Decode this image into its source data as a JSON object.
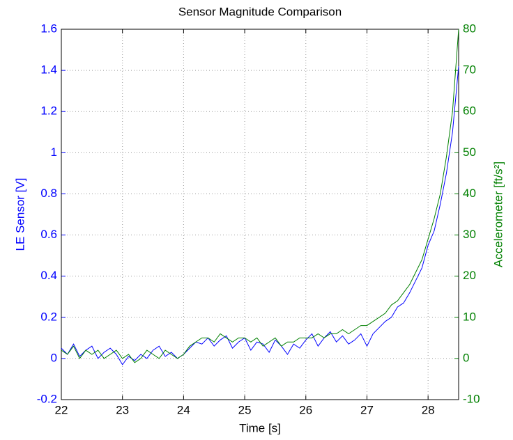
{
  "chart_data": {
    "type": "line",
    "title": "Sensor Magnitude Comparison",
    "x_label": "Time [s]",
    "y_label": "LE Sensor [V]",
    "y2_label": "Accelerometer [ft/s²]",
    "x": [
      22.0,
      22.1,
      22.2,
      22.3,
      22.4,
      22.5,
      22.6,
      22.7,
      22.8,
      22.9,
      23.0,
      23.1,
      23.2,
      23.3,
      23.4,
      23.5,
      23.6,
      23.7,
      23.8,
      23.9,
      24.0,
      24.1,
      24.2,
      24.3,
      24.4,
      24.5,
      24.6,
      24.7,
      24.8,
      24.9,
      25.0,
      25.1,
      25.2,
      25.3,
      25.4,
      25.5,
      25.6,
      25.7,
      25.8,
      25.9,
      26.0,
      26.1,
      26.2,
      26.3,
      26.4,
      26.5,
      26.6,
      26.7,
      26.8,
      26.9,
      27.0,
      27.1,
      27.2,
      27.3,
      27.4,
      27.5,
      27.6,
      27.7,
      27.8,
      27.9,
      28.0,
      28.1,
      28.2,
      28.3,
      28.4,
      28.5
    ],
    "series": [
      {
        "name": "LE Sensor",
        "color": "#0000ff",
        "axis": "y",
        "values": [
          0.05,
          0.02,
          0.07,
          0.01,
          0.04,
          0.06,
          0.0,
          0.03,
          0.05,
          0.02,
          -0.03,
          0.01,
          -0.01,
          0.02,
          0.0,
          0.04,
          0.06,
          0.01,
          0.03,
          0.0,
          0.02,
          0.05,
          0.08,
          0.07,
          0.1,
          0.06,
          0.09,
          0.11,
          0.05,
          0.08,
          0.1,
          0.04,
          0.08,
          0.07,
          0.03,
          0.09,
          0.06,
          0.02,
          0.07,
          0.05,
          0.09,
          0.12,
          0.06,
          0.1,
          0.13,
          0.08,
          0.11,
          0.07,
          0.09,
          0.12,
          0.06,
          0.12,
          0.15,
          0.18,
          0.2,
          0.25,
          0.27,
          0.32,
          0.38,
          0.44,
          0.55,
          0.62,
          0.75,
          0.9,
          1.1,
          1.42
        ]
      },
      {
        "name": "Accelerometer",
        "color": "#008000",
        "axis": "y2",
        "values": [
          2,
          1,
          3,
          0,
          2,
          1,
          2,
          0,
          1,
          2,
          0,
          1,
          -1,
          0,
          2,
          1,
          0,
          2,
          1,
          0,
          1,
          3,
          4,
          5,
          5,
          4,
          6,
          5,
          4,
          5,
          5,
          4,
          5,
          3,
          4,
          5,
          3,
          4,
          4,
          5,
          5,
          5,
          6,
          5,
          6,
          6,
          7,
          6,
          7,
          8,
          8,
          9,
          10,
          11,
          13,
          14,
          16,
          18,
          21,
          24,
          29,
          34,
          40,
          49,
          60,
          80
        ]
      }
    ],
    "xlim": [
      22,
      28.5
    ],
    "xticks": [
      22,
      23,
      24,
      25,
      26,
      27,
      28
    ],
    "ylim": [
      -0.2,
      1.6
    ],
    "yticks": [
      -0.2,
      0,
      0.2,
      0.4,
      0.6,
      0.8,
      1,
      1.2,
      1.4,
      1.6
    ],
    "y2lim": [
      -10,
      80
    ],
    "y2ticks": [
      -10,
      0,
      10,
      20,
      30,
      40,
      50,
      60,
      70,
      80
    ],
    "grid": true
  }
}
